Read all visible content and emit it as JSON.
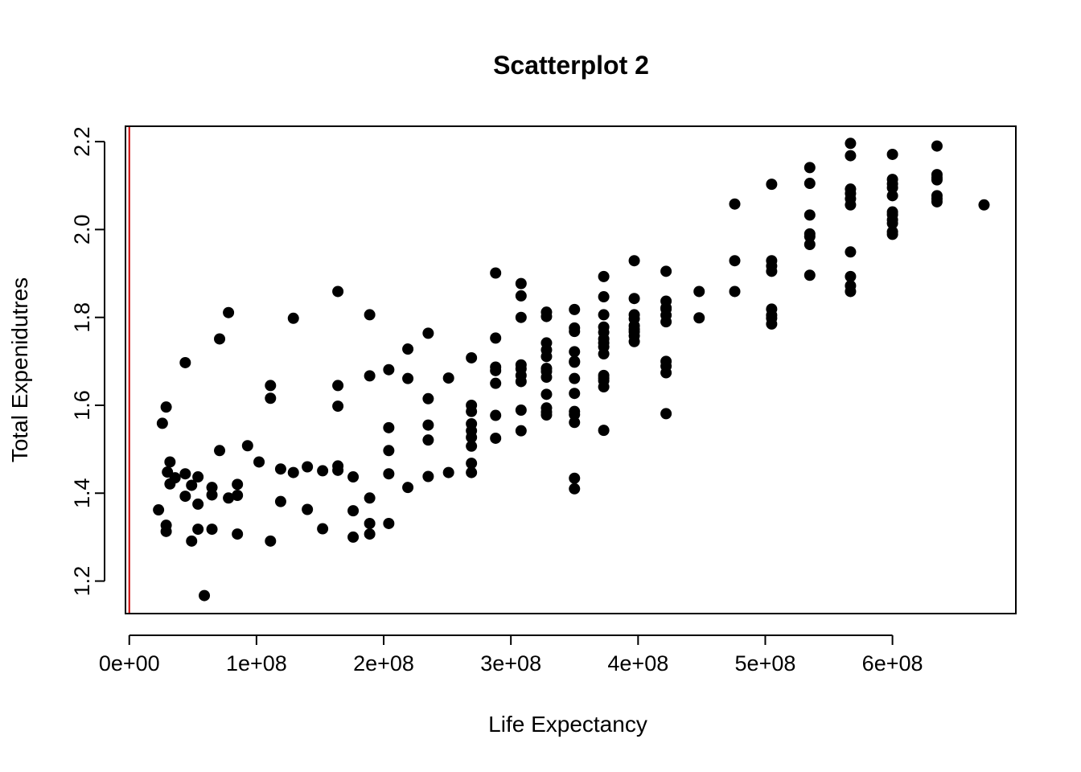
{
  "chart_data": {
    "type": "scatter",
    "title": "Scatterplot 2",
    "xlabel": "Life Expectancy",
    "ylabel": "Total Expenidutres",
    "xlim": [
      -3000000,
      697000000
    ],
    "ylim": [
      1.126,
      2.235
    ],
    "x_ticks": [
      0,
      100000000,
      200000000,
      300000000,
      400000000,
      500000000,
      600000000
    ],
    "x_tick_labels": [
      "0e+00",
      "1e+08",
      "2e+08",
      "3e+08",
      "4e+08",
      "5e+08",
      "6e+08"
    ],
    "y_ticks": [
      1.2,
      1.4,
      1.6,
      1.8,
      2.0,
      2.2
    ],
    "y_tick_labels": [
      "1.2",
      "1.4",
      "1.6",
      "1.8",
      "2.0",
      "2.2"
    ],
    "grid": false,
    "legend": "none",
    "point_color": "#000000",
    "vertical_line": {
      "x": 0,
      "color": "#cc0000"
    },
    "x": [
      23000000,
      26000000,
      29000000,
      30000000,
      29000000,
      29000000,
      32000000,
      32000000,
      36000000,
      44000000,
      44000000,
      44000000,
      49000000,
      49000000,
      54000000,
      54000000,
      54000000,
      59000000,
      65000000,
      65000000,
      65000000,
      71000000,
      71000000,
      78000000,
      78000000,
      85000000,
      85000000,
      85000000,
      93000000,
      102000000,
      111000000,
      111000000,
      111000000,
      119000000,
      119000000,
      129000000,
      129000000,
      140000000,
      140000000,
      152000000,
      152000000,
      164000000,
      164000000,
      164000000,
      164000000,
      164000000,
      176000000,
      176000000,
      176000000,
      189000000,
      189000000,
      189000000,
      189000000,
      189000000,
      204000000,
      204000000,
      204000000,
      204000000,
      204000000,
      219000000,
      219000000,
      219000000,
      235000000,
      235000000,
      235000000,
      235000000,
      235000000,
      251000000,
      251000000,
      269000000,
      269000000,
      269000000,
      269000000,
      269000000,
      269000000,
      269000000,
      269000000,
      269000000,
      288000000,
      288000000,
      288000000,
      288000000,
      288000000,
      288000000,
      288000000,
      308000000,
      308000000,
      308000000,
      308000000,
      308000000,
      308000000,
      308000000,
      308000000,
      308000000,
      328000000,
      328000000,
      328000000,
      328000000,
      328000000,
      328000000,
      328000000,
      328000000,
      328000000,
      328000000,
      328000000,
      328000000,
      350000000,
      350000000,
      350000000,
      350000000,
      350000000,
      350000000,
      350000000,
      350000000,
      350000000,
      350000000,
      350000000,
      350000000,
      350000000,
      373000000,
      373000000,
      373000000,
      373000000,
      373000000,
      373000000,
      373000000,
      373000000,
      373000000,
      373000000,
      373000000,
      373000000,
      373000000,
      373000000,
      397000000,
      397000000,
      397000000,
      397000000,
      397000000,
      397000000,
      397000000,
      397000000,
      397000000,
      422000000,
      422000000,
      422000000,
      422000000,
      422000000,
      422000000,
      422000000,
      422000000,
      422000000,
      422000000,
      448000000,
      448000000,
      476000000,
      476000000,
      476000000,
      505000000,
      505000000,
      505000000,
      505000000,
      505000000,
      505000000,
      505000000,
      505000000,
      535000000,
      535000000,
      535000000,
      535000000,
      535000000,
      535000000,
      535000000,
      567000000,
      567000000,
      567000000,
      567000000,
      567000000,
      567000000,
      567000000,
      567000000,
      567000000,
      567000000,
      600000000,
      600000000,
      600000000,
      600000000,
      600000000,
      600000000,
      600000000,
      600000000,
      600000000,
      600000000,
      600000000,
      635000000,
      635000000,
      635000000,
      635000000,
      635000000,
      635000000,
      635000000,
      672000000
    ],
    "y": [
      1.362,
      1.559,
      1.596,
      1.448,
      1.327,
      1.313,
      1.471,
      1.421,
      1.435,
      1.697,
      1.444,
      1.393,
      1.418,
      1.291,
      1.437,
      1.375,
      1.318,
      1.167,
      1.413,
      1.396,
      1.318,
      1.751,
      1.497,
      1.811,
      1.389,
      1.42,
      1.395,
      1.307,
      1.508,
      1.471,
      1.645,
      1.616,
      1.291,
      1.455,
      1.381,
      1.798,
      1.447,
      1.46,
      1.363,
      1.451,
      1.319,
      1.859,
      1.645,
      1.598,
      1.462,
      1.452,
      1.437,
      1.36,
      1.3,
      1.806,
      1.667,
      1.389,
      1.331,
      1.307,
      1.681,
      1.549,
      1.497,
      1.444,
      1.331,
      1.728,
      1.661,
      1.413,
      1.764,
      1.615,
      1.555,
      1.521,
      1.438,
      1.662,
      1.447,
      1.708,
      1.6,
      1.586,
      1.558,
      1.542,
      1.527,
      1.507,
      1.468,
      1.447,
      1.901,
      1.753,
      1.687,
      1.679,
      1.65,
      1.577,
      1.525,
      1.877,
      1.849,
      1.8,
      1.692,
      1.683,
      1.668,
      1.654,
      1.589,
      1.542,
      1.812,
      1.802,
      1.742,
      1.726,
      1.711,
      1.684,
      1.677,
      1.664,
      1.625,
      1.594,
      1.585,
      1.578,
      1.818,
      1.776,
      1.768,
      1.722,
      1.7,
      1.698,
      1.661,
      1.627,
      1.586,
      1.579,
      1.561,
      1.434,
      1.41,
      1.893,
      1.847,
      1.806,
      1.778,
      1.766,
      1.751,
      1.742,
      1.733,
      1.717,
      1.668,
      1.662,
      1.656,
      1.642,
      1.543,
      1.929,
      1.843,
      1.806,
      1.797,
      1.781,
      1.773,
      1.767,
      1.758,
      1.745,
      1.905,
      1.837,
      1.822,
      1.819,
      1.805,
      1.79,
      1.7,
      1.689,
      1.674,
      1.581,
      1.859,
      1.799,
      2.058,
      1.929,
      1.859,
      2.103,
      1.929,
      1.917,
      1.905,
      1.819,
      1.805,
      1.798,
      1.785,
      2.141,
      2.105,
      2.033,
      1.99,
      1.984,
      1.966,
      1.896,
      2.196,
      2.168,
      2.092,
      2.082,
      2.07,
      2.056,
      1.949,
      1.893,
      1.872,
      1.859,
      2.171,
      2.114,
      2.104,
      2.095,
      2.077,
      2.04,
      2.034,
      2.022,
      2.014,
      1.995,
      1.989,
      2.19,
      2.125,
      2.118,
      2.113,
      2.077,
      2.07,
      2.063,
      2.056
    ]
  }
}
